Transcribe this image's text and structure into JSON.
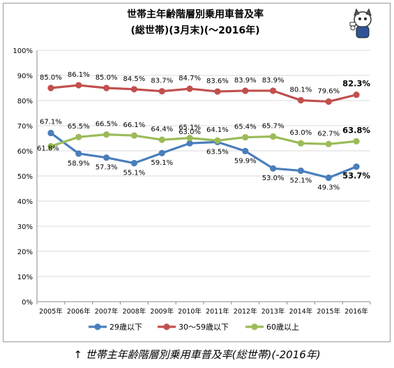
{
  "chart_data": {
    "type": "line",
    "title": "世帯主年齢階層別乗用車普及率",
    "subtitle": "(総世帯)(3月末)(～2016年)",
    "categories": [
      "2005年",
      "2006年",
      "2007年",
      "2008年",
      "2009年",
      "2010年",
      "2011年",
      "2012年",
      "2013年",
      "2014年",
      "2015年",
      "2016年"
    ],
    "ylim": [
      0,
      100
    ],
    "yticks": [
      "0%",
      "10%",
      "20%",
      "30%",
      "40%",
      "50%",
      "60%",
      "70%",
      "80%",
      "90%",
      "100%"
    ],
    "grid": true,
    "legend_position": "bottom",
    "series": [
      {
        "name": "29歳以下",
        "color": "#4a7ebb",
        "values": [
          67.1,
          58.9,
          57.3,
          55.1,
          59.1,
          63.0,
          63.5,
          59.9,
          53.0,
          52.1,
          49.3,
          53.7
        ],
        "labels": [
          "67.1%",
          "58.9%",
          "57.3%",
          "55.1%",
          "59.1%",
          "63.0%",
          "63.5%",
          "59.9%",
          "53.0%",
          "52.1%",
          "49.3%",
          "53.7%"
        ]
      },
      {
        "name": "30～59歳以下",
        "color": "#c0504d",
        "values": [
          85.0,
          86.1,
          85.0,
          84.5,
          83.7,
          84.7,
          83.6,
          83.9,
          83.9,
          80.1,
          79.6,
          82.3
        ],
        "labels": [
          "85.0%",
          "86.1%",
          "85.0%",
          "84.5%",
          "83.7%",
          "84.7%",
          "83.6%",
          "83.9%",
          "83.9%",
          "80.1%",
          "79.6%",
          "82.3%"
        ]
      },
      {
        "name": "60歳以上",
        "color": "#9bbb59",
        "values": [
          61.8,
          65.5,
          66.5,
          66.1,
          64.4,
          65.1,
          64.1,
          65.4,
          65.7,
          63.0,
          62.7,
          63.8
        ],
        "labels": [
          "61.8%",
          "65.5%",
          "66.5%",
          "66.1%",
          "64.4%",
          "65.1%",
          "64.1%",
          "65.4%",
          "65.7%",
          "63.0%",
          "62.7%",
          "63.8%"
        ]
      }
    ]
  },
  "caption": "↑ 世帯主年齢階層別乗用車普及率(総世帯)(-2016年)"
}
